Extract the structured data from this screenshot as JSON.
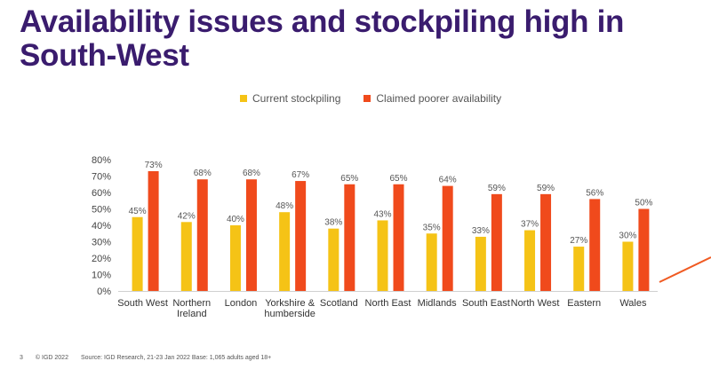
{
  "title": "Availability issues and stockpiling high in South-West",
  "footer": {
    "page": "3",
    "copyright": "© IGD 2022",
    "source": "Source: IGD Research, 21-23 Jan 2022  Base: 1,065 adults aged 18+"
  },
  "colors": {
    "title": "#3a1c6e",
    "current": "#f5c316",
    "claimed": "#f04a1c",
    "accent_line": "#f05a22"
  },
  "chart_data": {
    "type": "bar",
    "categories": [
      "South West",
      [
        "Northern",
        "Ireland"
      ],
      "London",
      [
        "Yorkshire &",
        "humberside"
      ],
      "Scotland",
      "North East",
      "Midlands",
      "South East",
      "North West",
      "Eastern",
      "Wales"
    ],
    "series": [
      {
        "name": "Current stockpiling",
        "color": "#f5c316",
        "values": [
          45,
          42,
          40,
          48,
          38,
          43,
          35,
          33,
          37,
          27,
          30
        ]
      },
      {
        "name": "Claimed poorer availability",
        "color": "#f04a1c",
        "values": [
          73,
          68,
          68,
          67,
          65,
          65,
          64,
          59,
          59,
          56,
          50
        ]
      }
    ],
    "ylim": [
      0,
      80
    ],
    "yticks": [
      0,
      10,
      20,
      30,
      40,
      50,
      60,
      70,
      80
    ],
    "value_suffix": "%",
    "legend_position": "top",
    "grid": false
  }
}
